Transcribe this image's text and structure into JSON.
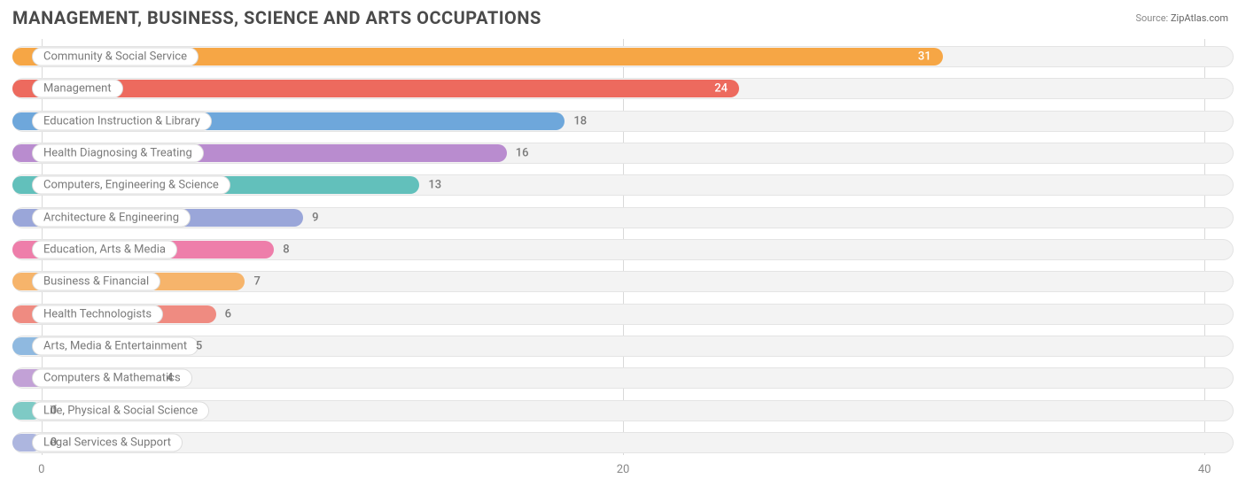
{
  "title": "MANAGEMENT, BUSINESS, SCIENCE AND ARTS OCCUPATIONS",
  "source_label": "Source:",
  "source_value": "ZipAtlas.com",
  "chart": {
    "type": "bar",
    "xmin": -1,
    "xmax": 41,
    "xticks": [
      0,
      20,
      40
    ],
    "grid_color": "#d9d9d9",
    "track_bg": "#f3f3f3",
    "track_border": "#e4e4e4",
    "label_bg": "#ffffff",
    "label_border": "#dcdcdc",
    "label_color": "#7a7a7a",
    "tick_color": "#888888",
    "bar_start": -1,
    "label_offset": 22,
    "value_gap": 10,
    "bars": [
      {
        "label": "Community & Social Service",
        "value": 31,
        "color": "#f6a645",
        "value_inside": true
      },
      {
        "label": "Management",
        "value": 24,
        "color": "#ed6a5e",
        "value_inside": true
      },
      {
        "label": "Education Instruction & Library",
        "value": 18,
        "color": "#6ea7db",
        "value_inside": false
      },
      {
        "label": "Health Diagnosing & Treating",
        "value": 16,
        "color": "#b98ccf",
        "value_inside": false
      },
      {
        "label": "Computers, Engineering & Science",
        "value": 13,
        "color": "#62c0bb",
        "value_inside": false
      },
      {
        "label": "Architecture & Engineering",
        "value": 9,
        "color": "#9aa6d9",
        "value_inside": false
      },
      {
        "label": "Education, Arts & Media",
        "value": 8,
        "color": "#ee7eaa",
        "value_inside": false
      },
      {
        "label": "Business & Financial",
        "value": 7,
        "color": "#f6b46b",
        "value_inside": false
      },
      {
        "label": "Health Technologists",
        "value": 6,
        "color": "#ef8b81",
        "value_inside": false
      },
      {
        "label": "Arts, Media & Entertainment",
        "value": 5,
        "color": "#8fb9e0",
        "value_inside": false
      },
      {
        "label": "Computers & Mathematics",
        "value": 4,
        "color": "#c2a1d6",
        "value_inside": false
      },
      {
        "label": "Life, Physical & Social Science",
        "value": 0,
        "color": "#7ecac5",
        "value_inside": false
      },
      {
        "label": "Legal Services & Support",
        "value": 0,
        "color": "#adb6df",
        "value_inside": false
      }
    ]
  }
}
